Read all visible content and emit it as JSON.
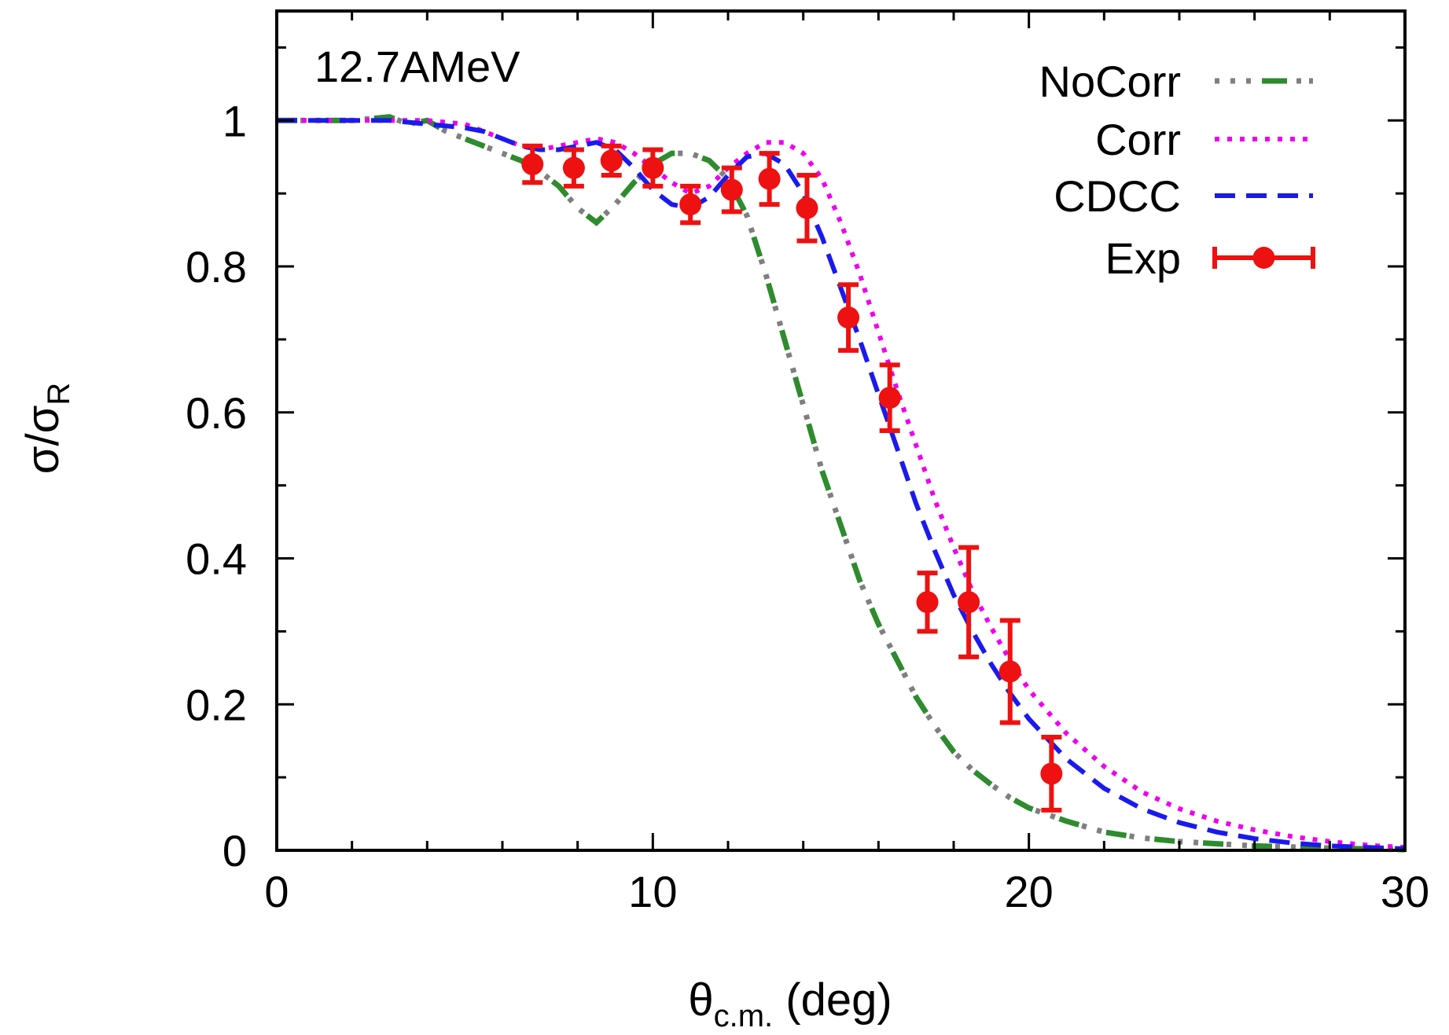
{
  "chart_data": {
    "type": "line",
    "annotation": "12.7AMeV",
    "xlabel": {
      "main": "θ",
      "sub": "c.m.",
      "suffix": " (deg)"
    },
    "ylabel": {
      "main": "σ/σ",
      "sub": "R"
    },
    "xlim": [
      0,
      30
    ],
    "ylim": [
      0,
      1.0
    ],
    "ylim_display_max": 1.15,
    "xticks": [
      0,
      10,
      20,
      30
    ],
    "xtick_labels": [
      "0",
      "10",
      "20",
      "30"
    ],
    "yticks": [
      0,
      0.2,
      0.4,
      0.6,
      0.8,
      1.0
    ],
    "ytick_labels": [
      "0",
      "0.2",
      "0.4",
      "0.6",
      "0.8",
      "1"
    ],
    "x_minor_step": 2,
    "y_minor_step": 0.1,
    "grid": false,
    "legend_position": "top-right",
    "series": [
      {
        "name": "NoCorr",
        "style": "dash-dot",
        "colors": [
          "#7f7f7f",
          "#2e8b2e"
        ],
        "x": [
          0,
          1,
          2,
          3,
          3.5,
          4,
          4.5,
          5,
          5.5,
          6,
          6.5,
          7,
          7.5,
          8,
          8.5,
          9,
          9.5,
          10,
          10.5,
          11,
          11.5,
          12,
          12.5,
          13,
          13.5,
          14,
          14.5,
          15,
          15.5,
          16,
          16.5,
          17,
          17.5,
          18,
          18.5,
          19,
          19.5,
          20,
          21,
          22,
          23,
          24,
          25,
          26,
          28,
          30
        ],
        "y": [
          1.0,
          1.0,
          1.0,
          1.005,
          0.995,
          1.0,
          0.985,
          0.975,
          0.965,
          0.955,
          0.945,
          0.93,
          0.91,
          0.88,
          0.86,
          0.885,
          0.915,
          0.94,
          0.955,
          0.955,
          0.945,
          0.92,
          0.87,
          0.79,
          0.7,
          0.61,
          0.52,
          0.445,
          0.37,
          0.31,
          0.26,
          0.21,
          0.17,
          0.135,
          0.11,
          0.09,
          0.072,
          0.058,
          0.04,
          0.025,
          0.017,
          0.012,
          0.009,
          0.006,
          0.003,
          0.001
        ]
      },
      {
        "name": "Corr",
        "style": "dotted",
        "colors": [
          "#ee00ee"
        ],
        "x": [
          0,
          1,
          2,
          3,
          4,
          5,
          5.5,
          6,
          6.5,
          7,
          7.5,
          8,
          8.5,
          9,
          9.5,
          10,
          10.5,
          11,
          11.5,
          12,
          12.5,
          13,
          13.5,
          14,
          14.5,
          15,
          15.5,
          16,
          16.5,
          17,
          17.5,
          18,
          18.5,
          19,
          19.5,
          20,
          21,
          22,
          23,
          24,
          25,
          26,
          27,
          28,
          29,
          30
        ],
        "y": [
          1.0,
          1.0,
          1.0,
          1.0,
          1.0,
          0.995,
          0.985,
          0.975,
          0.965,
          0.96,
          0.965,
          0.97,
          0.975,
          0.97,
          0.955,
          0.935,
          0.915,
          0.9,
          0.91,
          0.935,
          0.955,
          0.97,
          0.97,
          0.955,
          0.92,
          0.86,
          0.79,
          0.71,
          0.63,
          0.555,
          0.48,
          0.415,
          0.355,
          0.305,
          0.26,
          0.22,
          0.16,
          0.115,
          0.08,
          0.057,
          0.04,
          0.028,
          0.019,
          0.012,
          0.007,
          0.004
        ]
      },
      {
        "name": "CDCC",
        "style": "dashed",
        "colors": [
          "#1a1aee"
        ],
        "x": [
          0,
          1,
          2,
          3,
          4,
          5,
          5.5,
          6,
          6.5,
          7,
          7.5,
          8,
          8.5,
          9,
          9.5,
          10,
          10.5,
          11,
          11.5,
          12,
          12.5,
          13,
          13.5,
          14,
          14.5,
          15,
          15.5,
          16,
          16.5,
          17,
          17.5,
          18,
          18.5,
          19,
          19.5,
          20,
          21,
          22,
          23,
          24,
          25,
          26,
          27,
          28,
          29,
          30
        ],
        "y": [
          1.0,
          1.0,
          1.0,
          1.0,
          0.995,
          0.99,
          0.985,
          0.975,
          0.965,
          0.96,
          0.96,
          0.965,
          0.97,
          0.96,
          0.935,
          0.905,
          0.885,
          0.88,
          0.895,
          0.925,
          0.95,
          0.955,
          0.94,
          0.9,
          0.84,
          0.77,
          0.7,
          0.625,
          0.55,
          0.475,
          0.41,
          0.35,
          0.3,
          0.255,
          0.215,
          0.18,
          0.125,
          0.085,
          0.057,
          0.038,
          0.025,
          0.016,
          0.01,
          0.006,
          0.004,
          0.002
        ]
      },
      {
        "name": "Exp",
        "style": "points-errorbars",
        "colors": [
          "#ee1111"
        ],
        "x": [
          6.8,
          7.9,
          8.9,
          10.0,
          11.0,
          12.1,
          13.1,
          14.1,
          15.2,
          16.3,
          17.3,
          18.4,
          19.5,
          20.6
        ],
        "y": [
          0.94,
          0.935,
          0.945,
          0.935,
          0.885,
          0.905,
          0.92,
          0.88,
          0.73,
          0.62,
          0.34,
          0.34,
          0.245,
          0.105
        ],
        "yerr": [
          0.025,
          0.025,
          0.02,
          0.025,
          0.025,
          0.03,
          0.035,
          0.045,
          0.045,
          0.045,
          0.04,
          0.075,
          0.07,
          0.05
        ]
      }
    ]
  }
}
